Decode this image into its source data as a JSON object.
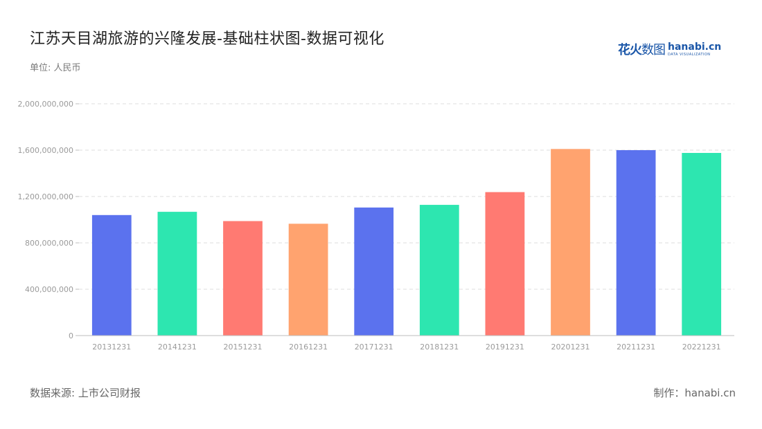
{
  "header": {
    "title": "江苏天目湖旅游的兴隆发展-基础柱状图-数据可视化",
    "unit": "单位: 人民币"
  },
  "logo": {
    "cn_bold": "花火",
    "cn_thin": "数图",
    "en": "hanabi.cn",
    "en_small": "DATA VISUALIZATION"
  },
  "footer": {
    "source": "数据来源: 上市公司财报",
    "maker": "制作：hanabi.cn"
  },
  "chart_data": {
    "type": "bar",
    "categories": [
      "20131231",
      "20141231",
      "20151231",
      "20161231",
      "20171231",
      "20181231",
      "20191231",
      "20201231",
      "20211231",
      "20221231"
    ],
    "values": [
      1040000000,
      1068000000,
      988000000,
      965000000,
      1105000000,
      1128000000,
      1238000000,
      1610000000,
      1600000000,
      1576000000
    ],
    "ylim": [
      0,
      2000000000
    ],
    "yticks": [
      0,
      400000000,
      800000000,
      1200000000,
      1600000000,
      2000000000
    ],
    "ytick_labels": [
      "0",
      "400,000,000",
      "800,000,000",
      "1,200,000,000",
      "1,600,000,000",
      "2,000,000,000"
    ],
    "colors": [
      "#5b72ee",
      "#2de6b0",
      "#ff7a72",
      "#ffa36f"
    ],
    "grid": true,
    "xlabel": "",
    "ylabel": ""
  }
}
